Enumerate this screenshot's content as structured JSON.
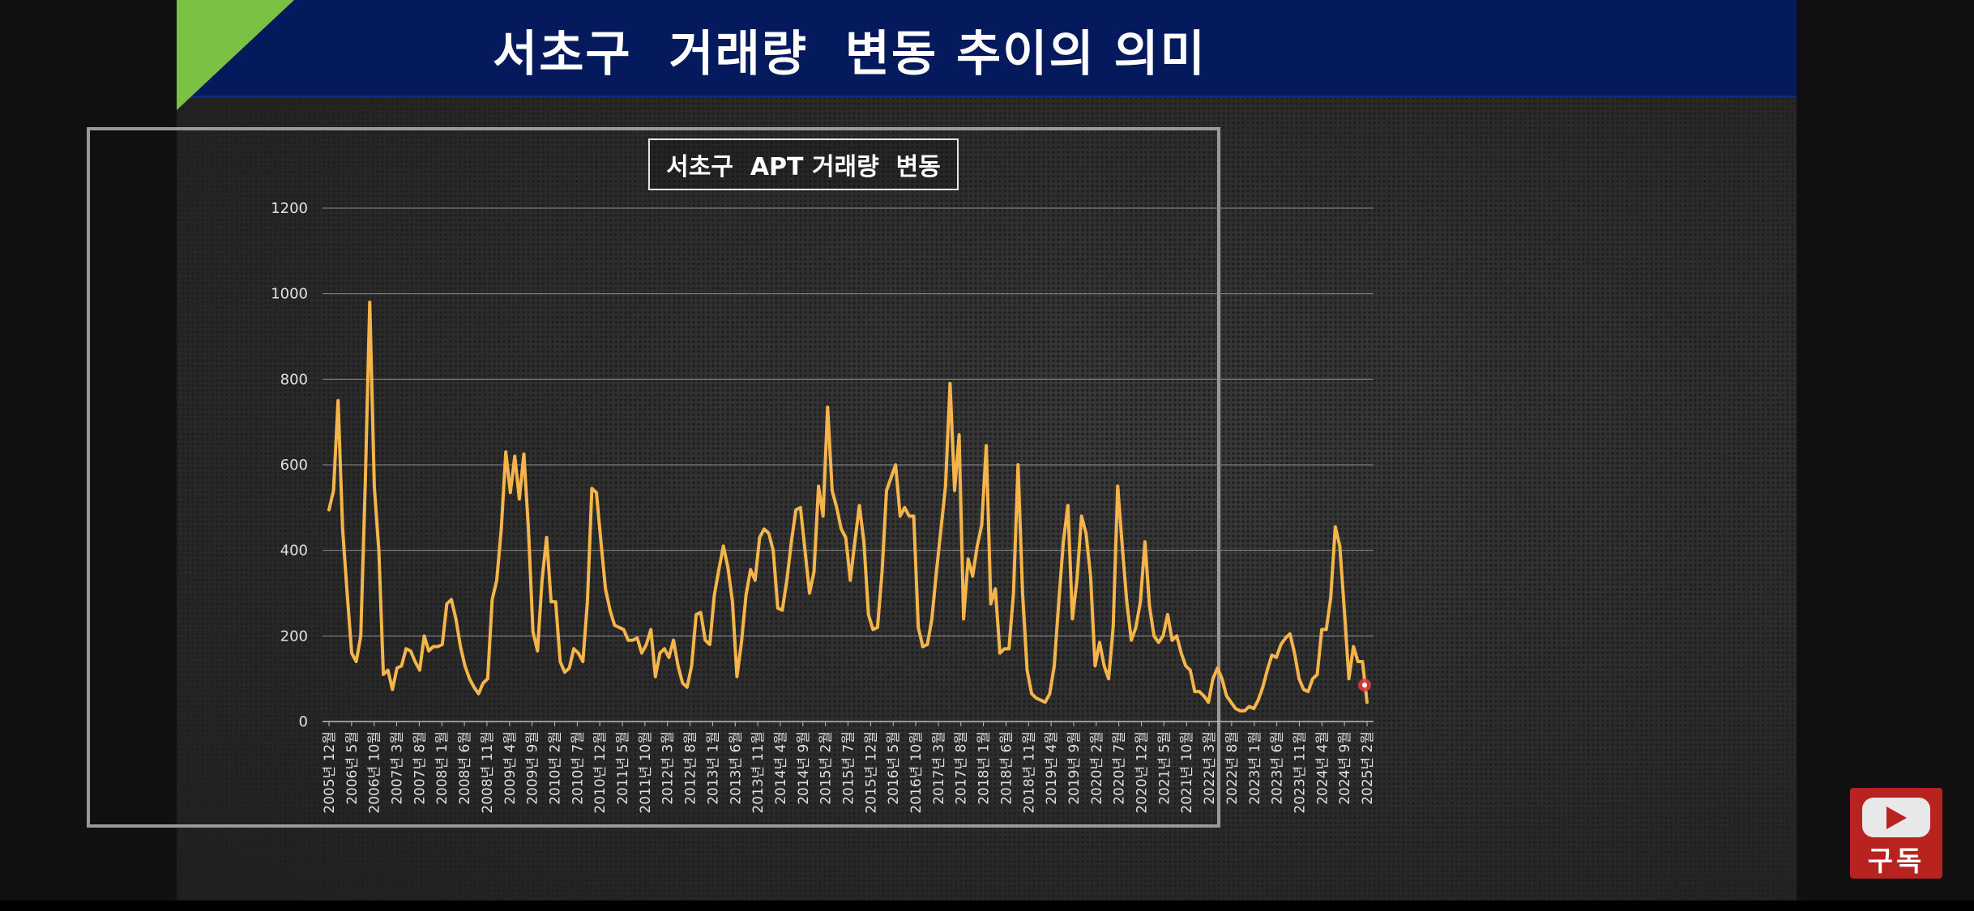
{
  "slide": {
    "title": "서초구  거래량  변동 추이의 의미"
  },
  "subscribe": {
    "label": "구독",
    "icon": "youtube-play-icon"
  },
  "colors": {
    "banner": "#051a5c",
    "accent": "#7bc143",
    "line": "#f5b54a",
    "subscribe": "#b8231f"
  },
  "chart_data": {
    "type": "line",
    "title": "서초구  APT 거래량  변동",
    "xlabel": "",
    "ylabel": "",
    "ylim": [
      0,
      1200
    ],
    "yticks": [
      0,
      200,
      400,
      600,
      800,
      1000,
      1200
    ],
    "grid": true,
    "legend": "none",
    "x_tick_labels": [
      "2005년 12월",
      "2006년 5월",
      "2006년 10월",
      "2007년 3월",
      "2007년 8월",
      "2008년 1월",
      "2008년 6월",
      "2008년 11월",
      "2009년 4월",
      "2009년 9월",
      "2010년 2월",
      "2010년 7월",
      "2010년 12월",
      "2011년 5월",
      "2011년 10월",
      "2012년 3월",
      "2012년 8월",
      "2013년 1월",
      "2013년 6월",
      "2013년 11월",
      "2014년 4월",
      "2014년 9월",
      "2015년 2월",
      "2015년 7월",
      "2015년 12월",
      "2016년 5월",
      "2016년 10월",
      "2017년 3월",
      "2017년 8월",
      "2018년 1월",
      "2018년 6월",
      "2018년 11월",
      "2019년 4월",
      "2019년 9월",
      "2020년 2월",
      "2020년 7월",
      "2020년 12월",
      "2021년 5월",
      "2021년 10월",
      "2022년 3월",
      "2022년 8월",
      "2023년 1월",
      "2023년 6월",
      "2023년 11월",
      "2024년 4월",
      "2024년 9월",
      "2025년 2월"
    ],
    "x_start": "2005-12",
    "x_end": "2025-02",
    "series": [
      {
        "values": [
          495,
          540,
          750,
          450,
          300,
          160,
          140,
          200,
          560,
          980,
          550,
          400,
          110,
          120,
          75,
          125,
          130,
          170,
          165,
          140,
          120,
          200,
          165,
          175,
          175,
          180,
          275,
          285,
          240,
          175,
          130,
          100,
          80,
          65,
          90,
          100,
          285,
          330,
          450,
          630,
          535,
          620,
          520,
          625,
          450,
          210,
          165,
          330,
          430,
          280,
          280,
          140,
          115,
          125,
          170,
          160,
          140,
          280,
          545,
          535,
          420,
          310,
          260,
          225,
          220,
          215,
          190,
          190,
          195,
          160,
          180,
          215,
          105,
          160,
          170,
          150,
          190,
          130,
          90,
          80,
          130,
          250,
          255,
          190,
          180,
          295,
          355,
          410,
          360,
          280,
          105,
          185,
          295,
          355,
          330,
          430,
          450,
          440,
          400,
          265,
          260,
          330,
          420,
          495,
          500,
          400,
          300,
          350,
          550,
          480,
          735,
          540,
          500,
          450,
          430,
          330,
          420,
          505,
          420,
          250,
          215,
          220,
          350,
          540,
          570,
          600,
          480,
          500,
          480,
          480,
          220,
          175,
          180,
          240,
          350,
          450,
          550,
          790,
          540,
          670,
          240,
          380,
          340,
          410,
          460,
          645,
          275,
          310,
          160,
          170,
          170,
          300,
          600,
          300,
          120,
          65,
          55,
          50,
          45,
          65,
          130,
          280,
          420,
          505,
          240,
          330,
          480,
          440,
          340,
          130,
          185,
          130,
          100,
          220,
          550,
          410,
          280,
          190,
          220,
          280,
          420,
          270,
          200,
          185,
          200,
          250,
          190,
          200,
          160,
          130,
          120,
          70,
          70,
          60,
          45,
          100,
          125,
          100,
          60,
          45,
          30,
          25,
          25,
          35,
          30,
          50,
          80,
          120,
          155,
          150,
          180,
          195,
          205,
          160,
          100,
          75,
          70,
          100,
          110,
          215,
          215,
          290,
          455,
          410,
          260,
          100,
          175,
          140,
          140,
          45
        ]
      }
    ]
  }
}
